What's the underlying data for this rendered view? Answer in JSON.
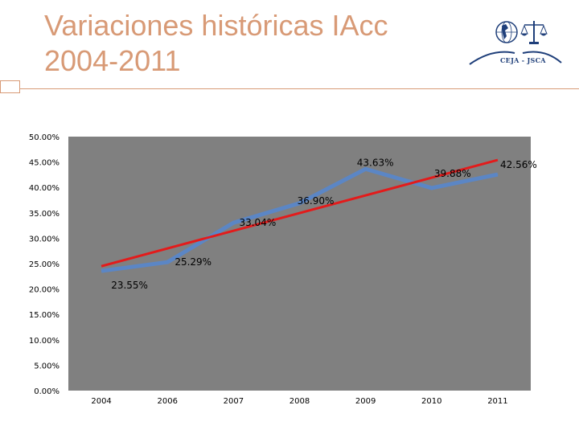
{
  "header": {
    "title_line1": "Variaciones históricas IAcc",
    "title_line2": "2004-2011"
  },
  "logo": {
    "text": "CEJA - JSCA",
    "icons": [
      "globe-icon",
      "scales-of-justice-icon"
    ]
  },
  "colors": {
    "title": "#d89a76",
    "series_line": "#5b86c5",
    "trend_line": "#e31b1b",
    "plot_background": "#808080",
    "logo_blue": "#1f3f7a"
  },
  "chart_data": {
    "type": "line",
    "categories": [
      "2004",
      "2006",
      "2007",
      "2008",
      "2009",
      "2010",
      "2011"
    ],
    "series": [
      {
        "values": [
          23.55,
          25.29,
          33.04,
          36.9,
          43.63,
          39.88,
          42.56
        ],
        "data_labels": [
          "23.55%",
          "25.29%",
          "33.04%",
          "36.90%",
          "43.63%",
          "39.88%",
          "42.56%"
        ]
      }
    ],
    "trendline": {
      "type": "linear",
      "values": [
        24.5,
        28.0,
        31.5,
        35.0,
        38.5,
        42.0,
        45.4
      ]
    },
    "y_ticks": [
      "50.00%",
      "45.00%",
      "40.00%",
      "35.00%",
      "30.00%",
      "25.00%",
      "20.00%",
      "15.00%",
      "10.00%",
      "5.00%",
      "0.00%"
    ],
    "ylim": [
      0,
      50
    ],
    "grid": false,
    "legend": "none"
  }
}
